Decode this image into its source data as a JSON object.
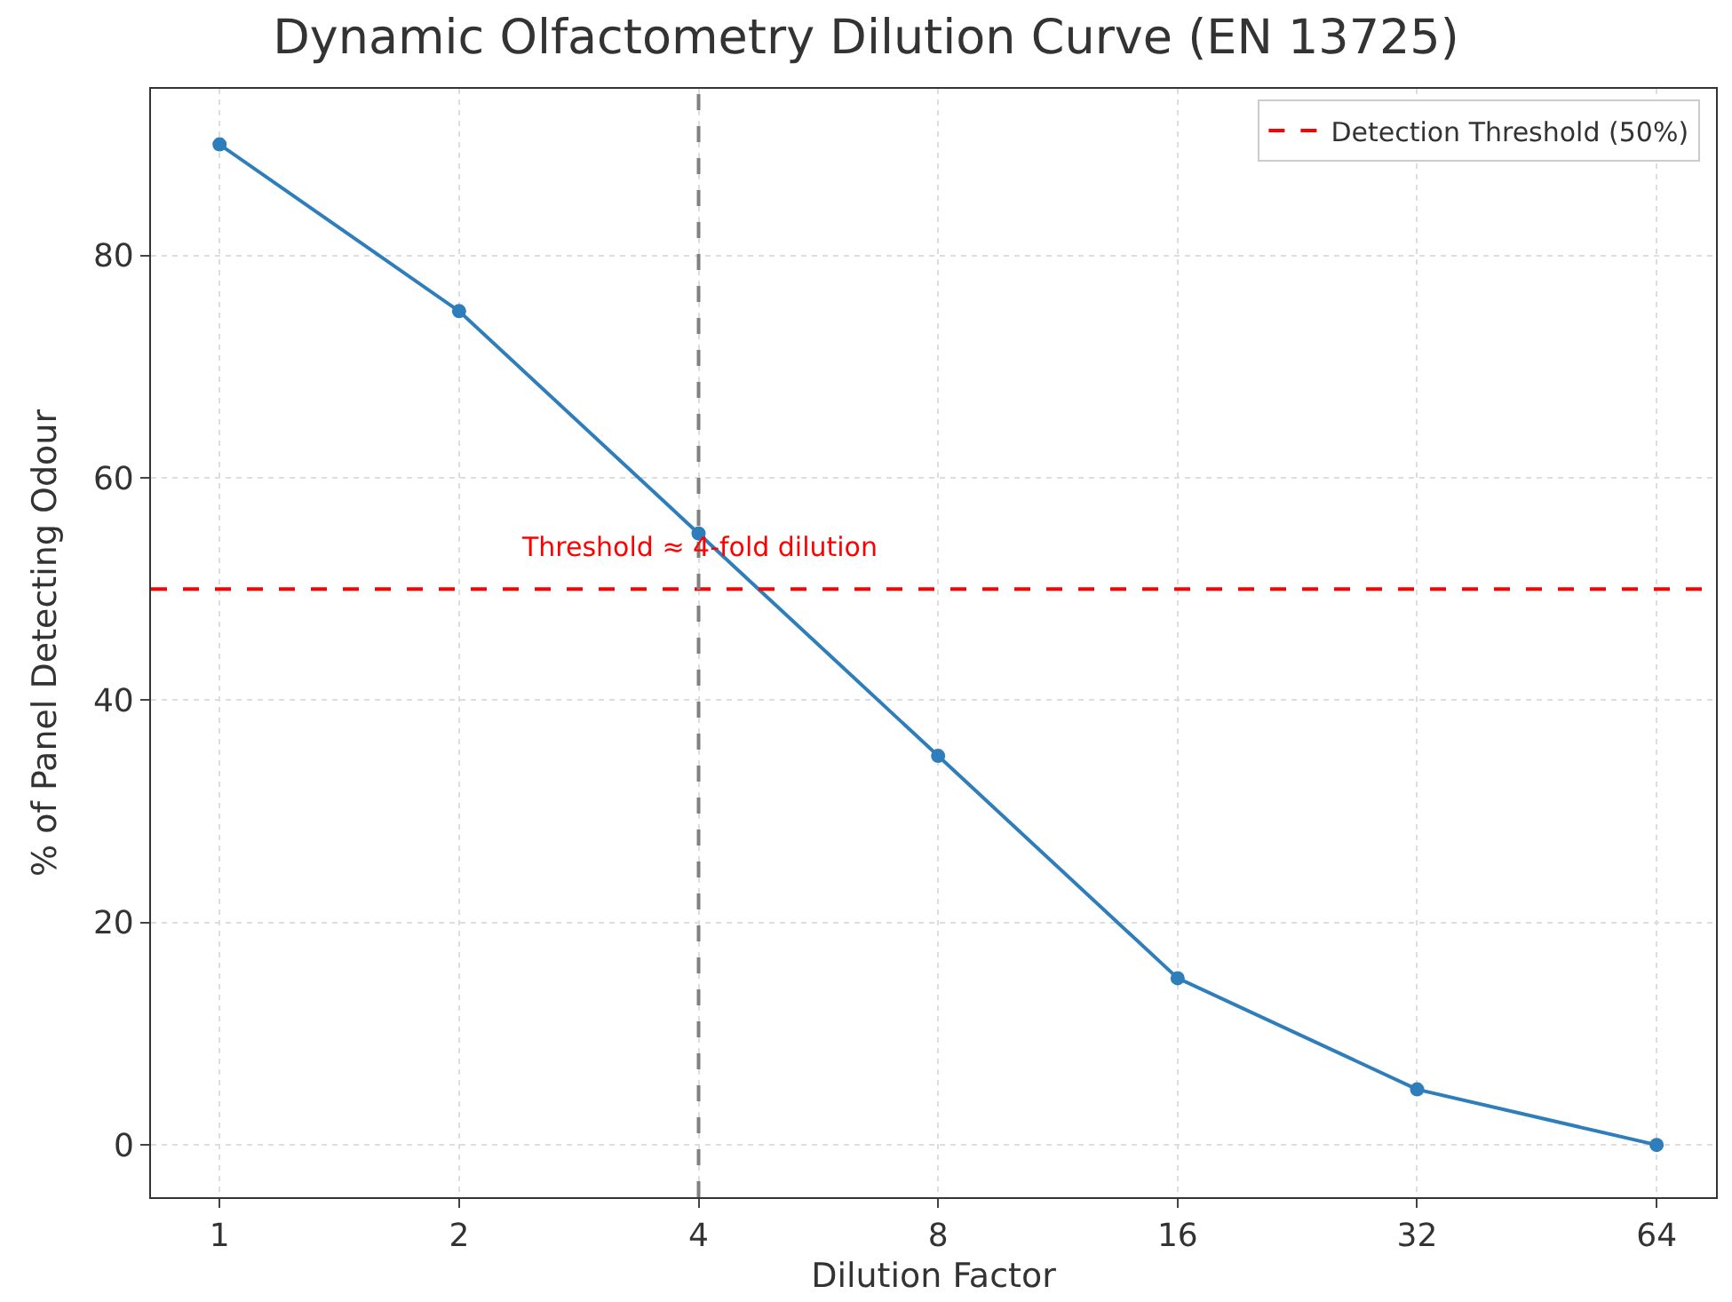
{
  "chart_data": {
    "type": "line",
    "title": "Dynamic Olfactometry Dilution Curve (EN 13725)",
    "xlabel": "Dilution Factor",
    "ylabel": "% of Panel Detecting Odour",
    "x": [
      1,
      2,
      4,
      8,
      16,
      32,
      64
    ],
    "series": [
      {
        "color": "#2f7ebc",
        "values": [
          90,
          75,
          55,
          35,
          15,
          5,
          0
        ]
      }
    ],
    "log": "x",
    "xlim": [
      0.82,
      76
    ],
    "xticks": [
      1,
      2,
      4,
      8,
      16,
      32,
      64
    ],
    "ylim": [
      -4.7,
      95
    ],
    "yticks": [
      0,
      20,
      40,
      60,
      80
    ],
    "ref_lines": [
      {
        "axis": "y",
        "value": 50,
        "label": "Detection Threshold (50%)",
        "color": "#ff0000",
        "line_style": "dashed"
      },
      {
        "axis": "x",
        "value": 4,
        "label": null,
        "color": "#808080",
        "line_style": "dashed"
      }
    ],
    "annotations": [
      {
        "text": "Threshold ≈ 4-fold dilution",
        "x": 4,
        "y": 52
      }
    ],
    "grid": true,
    "legend": "top right",
    "marker": "circle",
    "line_style": "solid"
  }
}
